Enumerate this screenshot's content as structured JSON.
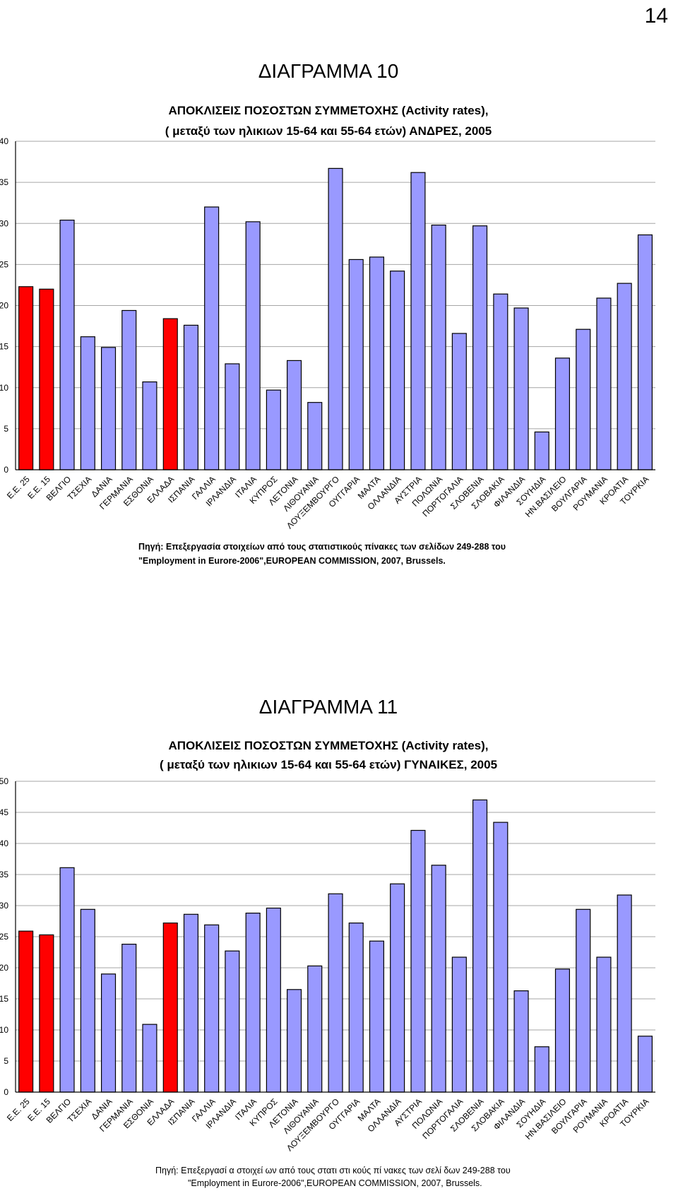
{
  "page_number": "14",
  "chart_data": [
    {
      "type": "bar",
      "heading": "ΔΙΑΓΡΑΜΜΑ 10",
      "title_line1": "ΑΠΟΚΛΙΣΕΙΣ ΠΟΣΟΣΤΩΝ ΣΥΜΜΕΤΟΧΗΣ (Activity rates),",
      "title_line2": "( μεταξύ των ηλικιων 15-64 και  55-64 ετών) ΑΝΔΡΕΣ, 2005",
      "categories": [
        "Ε.Ε. 25",
        "Ε.Ε. 15",
        "ΒΕΛΓΙΟ",
        "ΤΣΕΧΙΑ",
        "ΔΑΝΙΑ",
        "ΓΕΡΜΑΝΙΑ",
        "ΕΣΘΟΝΙΑ",
        "ΕΛΛΑΔΑ",
        "ΙΣΠΑΝΙΑ",
        "ΓΑΛΛΙΑ",
        "ΙΡΛΑΝΔΙΑ",
        "ΙΤΑΛΙΑ",
        "ΚΥΠΡΟΣ",
        "ΛΕΤΟΝΙΑ",
        "ΛΙΘΟΥΑΝΙΑ",
        "ΛΟΥΞΕΜΒΟΥΡΓΟ",
        "ΟΥΓΓΑΡΙΑ",
        "ΜΑΛΤΑ",
        "ΟΛΛΑΝΔΙΑ",
        "ΑΥΣΤΡΙΑ",
        "ΠΟΛΩΝΙΑ",
        "ΠΟΡΤΟΓΑΛΙΑ",
        "ΣΛΟΒΕΝΙΑ",
        "ΣΛΟΒΑΚΙΑ",
        "ΦΙΛΑΝΔΙΑ",
        "ΣΟΥΗΔΙΑ",
        "ΗΝ.ΒΑΣΙΛΕΙΟ",
        "ΒΟΥΛΓΑΡΙΑ",
        "ΡΟΥΜΑΝΙΑ",
        "ΚΡΟΑΤΙΑ",
        "ΤΟΥΡΚΙΑ"
      ],
      "values": [
        22.3,
        22.0,
        30.4,
        16.2,
        14.9,
        19.4,
        10.7,
        18.4,
        17.6,
        32.0,
        12.9,
        30.2,
        9.7,
        13.3,
        8.2,
        36.7,
        25.6,
        25.9,
        24.2,
        36.2,
        29.8,
        16.6,
        29.7,
        21.4,
        19.7,
        4.6,
        13.6,
        17.1,
        20.9,
        22.7,
        28.6
      ],
      "highlight_categories": [
        "Ε.Ε. 25",
        "Ε.Ε. 15",
        "ΕΛΛΑΔΑ"
      ],
      "ylim": [
        0,
        40
      ],
      "yticks": [
        "0",
        "5",
        "10",
        "15",
        "20",
        "25",
        "30",
        "35",
        "40"
      ],
      "grid": true,
      "xlabel": "",
      "ylabel": "",
      "source_line1": "Πηγή: Επεξεργασία στοιχείων από τους στατιστικούς πίνακες των σελίδων 249-288  του",
      "source_line2": "\"Employment in Eurore-2006\",EUROPEAN COMMISSION, 2007, Brussels."
    },
    {
      "type": "bar",
      "heading": "ΔΙΑΓΡΑΜΜΑ 11",
      "title_line1": "ΑΠΟΚΛΙΣΕΙΣ ΠΟΣΟΣΤΩΝ ΣΥΜΜΕΤΟΧΗΣ (Activity rates),",
      "title_line2": "( μεταξύ των ηλικιων 15-64 και  55-64 ετών) ΓΥΝΑΙΚΕΣ, 2005",
      "categories": [
        "Ε.Ε. 25",
        "Ε.Ε. 15",
        "ΒΕΛΓΙΟ",
        "ΤΣΕΧΙΑ",
        "ΔΑΝΙΑ",
        "ΓΕΡΜΑΝΙΑ",
        "ΕΣΘΟΝΙΑ",
        "ΕΛΛΑΔΑ",
        "ΙΣΠΑΝΙΑ",
        "ΓΑΛΛΙΑ",
        "ΙΡΛΑΝΔΙΑ",
        "ΙΤΑΛΙΑ",
        "ΚΥΠΡΟΣ",
        "ΛΕΤΟΝΙΑ",
        "ΛΙΘΟΥΑΝΙΑ",
        "ΛΟΥΞΕΜΒΟΥΡΓΟ",
        "ΟΥΓΓΑΡΙΑ",
        "ΜΑΛΤΑ",
        "ΟΛΛΑΝΔΙΑ",
        "ΑΥΣΤΡΙΑ",
        "ΠΟΛΩΝΙΑ",
        "ΠΟΡΤΟΓΑΛΙΑ",
        "ΣΛΟΒΕΝΙΑ",
        "ΣΛΟΒΑΚΙΑ",
        "ΦΙΛΑΝΔΙΑ",
        "ΣΟΥΗΔΙΑ",
        "ΗΝ.ΒΑΣΙΛΕΙΟ",
        "ΒΟΥΛΓΑΡΙΑ",
        "ΡΟΥΜΑΝΙΑ",
        "ΚΡΟΑΤΙΑ",
        "ΤΟΥΡΚΙΑ"
      ],
      "values": [
        25.9,
        25.3,
        36.1,
        29.4,
        19.0,
        23.8,
        10.9,
        27.2,
        28.6,
        26.9,
        22.7,
        28.8,
        29.6,
        16.5,
        20.3,
        31.9,
        27.2,
        24.3,
        33.5,
        42.1,
        36.5,
        21.7,
        47.0,
        43.4,
        16.3,
        7.3,
        19.8,
        29.4,
        21.7,
        31.7,
        9.0
      ],
      "highlight_categories": [
        "Ε.Ε. 25",
        "Ε.Ε. 15",
        "ΕΛΛΑΔΑ"
      ],
      "ylim": [
        0,
        50
      ],
      "yticks": [
        "0",
        "5",
        "10",
        "15",
        "20",
        "25",
        "30",
        "35",
        "40",
        "45",
        "50"
      ],
      "grid": true,
      "xlabel": "",
      "ylabel": "",
      "source_line1": "Πηγή: Επεξεργασί α στοιχεί ων από τους στατι στι κούς πί νακες των σελί δων 249-288  του",
      "source_line2": "\"Employment in Eurore-2006\",EUROPEAN COMMISSION, 2007, Brussels."
    }
  ],
  "colors": {
    "bar": "#9999ff",
    "highlight": "#ff0000",
    "grid": "#a6a6a6",
    "axis": "#000000"
  }
}
